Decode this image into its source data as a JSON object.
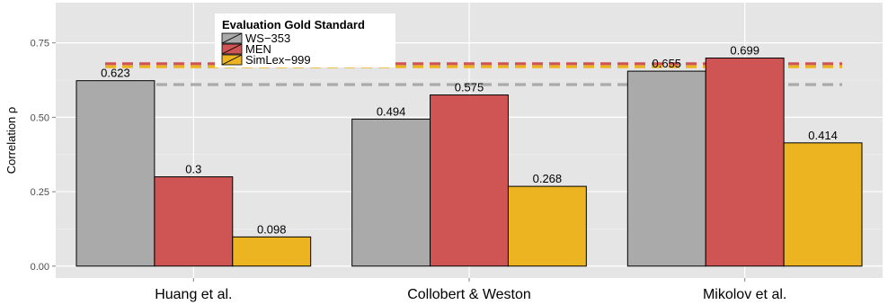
{
  "chart_data": {
    "type": "bar",
    "title": "",
    "xlabel": "",
    "ylabel": "Correlation ρ",
    "ylim": [
      -0.04,
      0.885
    ],
    "yticks": [
      0.0,
      0.25,
      0.5,
      0.75
    ],
    "ytick_labels": [
      "0.00",
      "0.25",
      "0.50",
      "0.75"
    ],
    "grid": true,
    "legend_title": "Evaluation Gold Standard",
    "legend_position": "top-left",
    "categories": [
      "Huang et al.",
      "Collobert & Weston",
      "Mikolov et al."
    ],
    "series": [
      {
        "name": "WS−353",
        "color": "#aaaaaa",
        "values": [
          0.623,
          0.494,
          0.655
        ],
        "labels": [
          "0.623",
          "0.494",
          "0.655"
        ],
        "reference_line": 0.61
      },
      {
        "name": "MEN",
        "color": "#cf5555",
        "values": [
          0.3,
          0.575,
          0.699
        ],
        "labels": [
          "0.3",
          "0.575",
          "0.699"
        ],
        "reference_line": 0.68
      },
      {
        "name": "SimLex−999",
        "color": "#ecb420",
        "values": [
          0.098,
          0.268,
          0.414
        ],
        "labels": [
          "0.098",
          "0.268",
          "0.414"
        ],
        "reference_line": 0.67
      }
    ]
  }
}
